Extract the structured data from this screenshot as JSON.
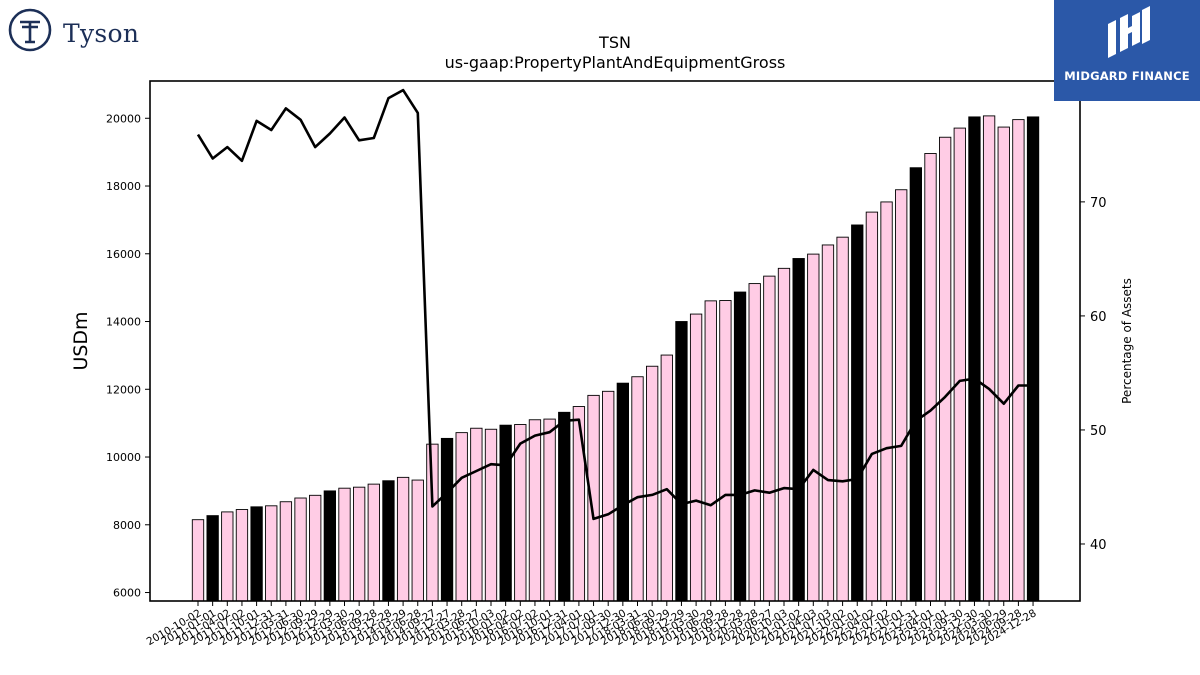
{
  "brand": {
    "left_logo_text": "Tyson",
    "right_logo_text": "MIDGARD FINANCE"
  },
  "colors": {
    "bar_pink": "#ffcce5",
    "bar_black": "#000000",
    "line": "#000000",
    "midgard_blue": "#2b58a8",
    "tyson_navy": "#1c2f57"
  },
  "chart_data": {
    "type": "bar",
    "title": "TSN",
    "subtitle": "us-gaap:PropertyPlantAndEquipmentGross",
    "ylabel": "USDm",
    "y2label": "Percentage of Assets",
    "ylim": [
      5750,
      21100
    ],
    "y2lim": [
      35,
      80.6
    ],
    "yticks": [
      6000,
      8000,
      10000,
      12000,
      14000,
      16000,
      18000,
      20000
    ],
    "y2ticks": [
      40,
      50,
      60,
      70
    ],
    "categories": [
      "2010-10-02",
      "2011-01-01",
      "2011-04-02",
      "2011-07-02",
      "2011-10-01",
      "2011-12-31",
      "2012-03-31",
      "2012-06-30",
      "2012-09-29",
      "2012-12-29",
      "2013-03-30",
      "2013-06-29",
      "2013-09-28",
      "2013-12-28",
      "2014-03-29",
      "2014-06-28",
      "2014-09-27",
      "2014-12-27",
      "2015-03-28",
      "2015-06-27",
      "2015-10-03",
      "2016-01-02",
      "2016-04-02",
      "2016-07-02",
      "2016-10-01",
      "2016-12-31",
      "2017-04-01",
      "2017-07-01",
      "2017-09-30",
      "2017-12-30",
      "2018-03-31",
      "2018-06-30",
      "2018-09-29",
      "2018-12-29",
      "2019-03-30",
      "2019-06-29",
      "2019-09-28",
      "2019-12-28",
      "2020-03-28",
      "2020-06-27",
      "2020-10-03",
      "2021-01-02",
      "2021-04-03",
      "2021-07-03",
      "2021-10-02",
      "2022-01-01",
      "2022-04-02",
      "2022-07-02",
      "2022-10-01",
      "2022-12-31",
      "2023-04-01",
      "2023-07-01",
      "2023-09-30",
      "2023-12-30",
      "2024-03-30",
      "2024-06-29",
      "2024-09-28",
      "2024-12-28"
    ],
    "series": [
      {
        "type": "bar",
        "values": [
          8150,
          8270,
          8380,
          8450,
          8530,
          8560,
          8680,
          8790,
          8870,
          9000,
          9080,
          9110,
          9200,
          9300,
          9400,
          9320,
          10380,
          10550,
          10720,
          10850,
          10820,
          10940,
          10960,
          11100,
          11120,
          11320,
          11490,
          11820,
          11940,
          12180,
          12370,
          12680,
          13010,
          14000,
          14220,
          14610,
          14620,
          14870,
          15120,
          15340,
          15570,
          15860,
          15990,
          16260,
          16490,
          16850,
          17230,
          17530,
          17890,
          18540,
          18960,
          19440,
          19710,
          20040,
          20070,
          19740,
          19960,
          20040
        ]
      },
      {
        "type": "line",
        "axis": "right",
        "values": [
          75.9,
          73.8,
          74.8,
          73.6,
          77.1,
          76.3,
          78.2,
          77.2,
          74.8,
          76.0,
          77.4,
          75.4,
          75.6,
          79.1,
          79.8,
          77.8,
          43.3,
          44.5,
          45.8,
          46.4,
          47.0,
          46.9,
          48.8,
          49.5,
          49.8,
          50.8,
          50.9,
          42.2,
          42.6,
          43.4,
          44.1,
          44.3,
          44.8,
          43.5,
          43.8,
          43.4,
          44.3,
          44.3,
          44.7,
          44.5,
          44.9,
          44.8,
          46.5,
          45.6,
          45.5,
          45.7,
          47.9,
          48.4,
          48.6,
          50.8,
          51.7,
          52.9,
          54.3,
          54.5,
          53.6,
          52.3,
          53.9,
          53.9
        ]
      }
    ],
    "bar_black_indices": [
      1,
      4,
      9,
      13,
      17,
      21,
      25,
      29,
      33,
      37,
      41,
      45,
      49,
      53,
      57
    ],
    "legend": "none",
    "grid": false
  }
}
